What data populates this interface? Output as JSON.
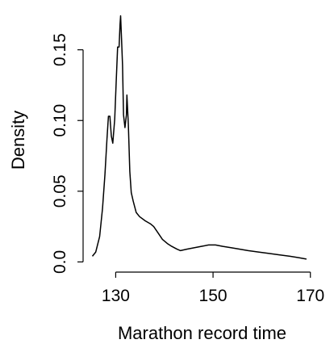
{
  "chart_data": {
    "type": "line",
    "title": "",
    "xlabel": "Marathon record time",
    "ylabel": "Density",
    "xlim": [
      123.3,
      172.2
    ],
    "ylim": [
      -0.0072,
      0.1795
    ],
    "x_ticks": [
      130,
      150,
      170
    ],
    "x_tick_labels": [
      "130",
      "150",
      "170"
    ],
    "y_ticks": [
      0.0,
      0.05,
      0.1,
      0.15
    ],
    "y_tick_labels": [
      "0.0",
      "0.05",
      "0.10",
      "0.15"
    ],
    "grid": false,
    "legend": "none",
    "line_color": "#000000",
    "series": [
      {
        "x": [
          125.2,
          125.9,
          126.7,
          127.3,
          127.8,
          128.2,
          128.5,
          128.8,
          129.1,
          129.4,
          129.8,
          130.1,
          130.4,
          130.7,
          130.9,
          131.0,
          131.2,
          131.4,
          131.6,
          131.9,
          132.2,
          132.3,
          132.6,
          132.9,
          133.2,
          133.6,
          134.2,
          134.9,
          136.1,
          137.1,
          137.8,
          138.6,
          139.6,
          140.6,
          141.5,
          142.6,
          143.3,
          144.6,
          146.1,
          147.6,
          149.1,
          150.5,
          152.0,
          153.8,
          155.5,
          157.2,
          159.3,
          161.5,
          163.6,
          165.8,
          167.6,
          169.2
        ],
        "y": [
          0.004,
          0.007,
          0.018,
          0.038,
          0.062,
          0.087,
          0.103,
          0.103,
          0.089,
          0.084,
          0.101,
          0.127,
          0.152,
          0.152,
          0.168,
          0.174,
          0.157,
          0.139,
          0.104,
          0.095,
          0.104,
          0.118,
          0.097,
          0.064,
          0.049,
          0.043,
          0.035,
          0.032,
          0.029,
          0.027,
          0.025,
          0.021,
          0.016,
          0.013,
          0.011,
          0.009,
          0.008,
          0.009,
          0.01,
          0.011,
          0.012,
          0.012,
          0.011,
          0.01,
          0.009,
          0.008,
          0.007,
          0.006,
          0.005,
          0.004,
          0.003,
          0.002
        ]
      }
    ]
  }
}
